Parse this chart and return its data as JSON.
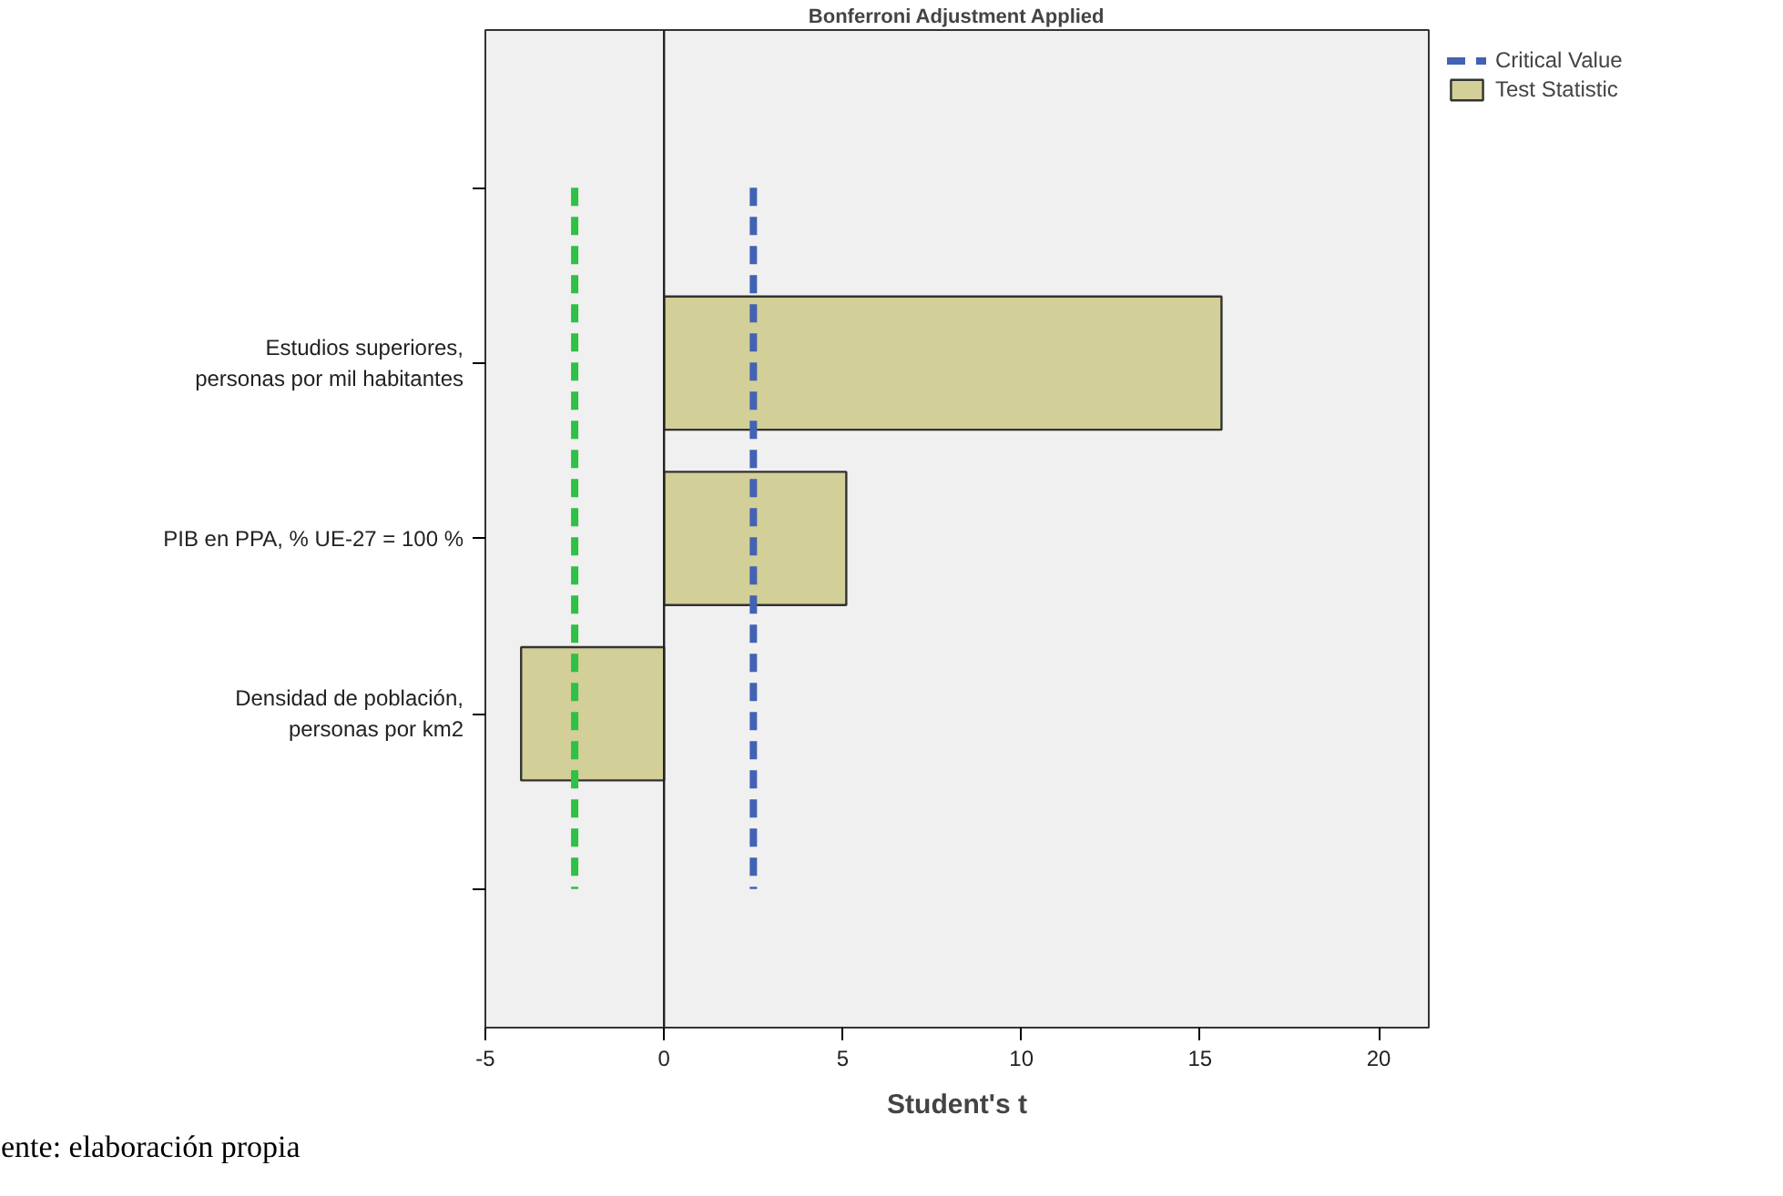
{
  "chart_data": {
    "type": "bar",
    "orientation": "horizontal",
    "title": "Bonferroni Adjustment Applied",
    "xlabel": "Student's t",
    "categories": [
      null,
      "Estudios superiores,\npersonas por mil habitantes",
      "PIB en PPA, % UE-27 = 100 %",
      "Densidad de población,\npersonas por km2",
      null
    ],
    "series": [
      {
        "name": "Test Statistic",
        "color": "#d3cf98",
        "values": [
          null,
          15.6,
          5.1,
          -4.0,
          null
        ]
      }
    ],
    "xlim": [
      -5,
      21.4
    ],
    "xticks": [
      -5,
      0,
      5,
      10,
      15,
      20
    ],
    "ref_lines": [
      {
        "axis": "x",
        "value": 2.5,
        "label": "Critical Value",
        "color": "#4262b4",
        "line_style": "dashed"
      },
      {
        "axis": "x",
        "value": -2.5,
        "color": "#2fc046",
        "line_style": "dashed"
      },
      {
        "axis": "x",
        "value": 0,
        "color": "#222222",
        "line_style": "solid"
      }
    ],
    "legend": "top right",
    "grid": false,
    "annotations": [
      "ente: elaboración propia"
    ]
  }
}
